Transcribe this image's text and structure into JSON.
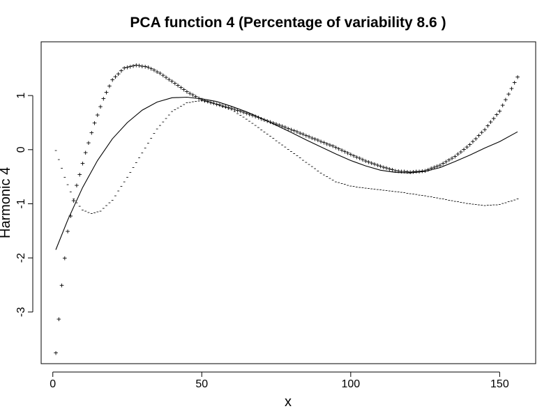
{
  "chart_data": {
    "type": "line",
    "title": "PCA function 4 (Percentage of variability 8.6 )",
    "xlabel": "x",
    "ylabel": "Harmonic 4",
    "xlim": [
      1,
      156
    ],
    "ylim": [
      -3.8,
      1.8
    ],
    "x_ticks": [
      0,
      50,
      100,
      150
    ],
    "y_ticks": [
      -3,
      -2,
      -1,
      0,
      1
    ],
    "x_tick_labels": [
      "0",
      "50",
      "100",
      "150"
    ],
    "y_tick_labels": [
      "-3",
      "-2",
      "-1",
      "0",
      "1"
    ],
    "grid": false,
    "legend": "none",
    "series": [
      {
        "style": "solid-line",
        "points": [
          [
            1,
            -1.85
          ],
          [
            5,
            -1.3
          ],
          [
            10,
            -0.7
          ],
          [
            15,
            -0.2
          ],
          [
            20,
            0.2
          ],
          [
            25,
            0.5
          ],
          [
            30,
            0.73
          ],
          [
            35,
            0.88
          ],
          [
            40,
            0.96
          ],
          [
            45,
            0.97
          ],
          [
            50,
            0.94
          ],
          [
            55,
            0.89
          ],
          [
            60,
            0.8
          ],
          [
            65,
            0.7
          ],
          [
            70,
            0.58
          ],
          [
            75,
            0.45
          ],
          [
            80,
            0.32
          ],
          [
            85,
            0.18
          ],
          [
            90,
            0.05
          ],
          [
            95,
            -0.08
          ],
          [
            100,
            -0.2
          ],
          [
            105,
            -0.3
          ],
          [
            110,
            -0.38
          ],
          [
            115,
            -0.42
          ],
          [
            120,
            -0.43
          ],
          [
            125,
            -0.4
          ],
          [
            130,
            -0.33
          ],
          [
            135,
            -0.22
          ],
          [
            140,
            -0.1
          ],
          [
            145,
            0.03
          ],
          [
            150,
            0.15
          ],
          [
            156,
            0.33
          ]
        ]
      },
      {
        "style": "plus-markers",
        "points": [
          [
            1,
            -3.75
          ],
          [
            3,
            -2.5
          ],
          [
            5,
            -1.5
          ],
          [
            8,
            -0.65
          ],
          [
            11,
            -0.05
          ],
          [
            14,
            0.5
          ],
          [
            17,
            0.95
          ],
          [
            20,
            1.3
          ],
          [
            24,
            1.52
          ],
          [
            28,
            1.57
          ],
          [
            32,
            1.53
          ],
          [
            36,
            1.42
          ],
          [
            40,
            1.27
          ],
          [
            45,
            1.08
          ],
          [
            50,
            0.93
          ],
          [
            55,
            0.85
          ],
          [
            60,
            0.77
          ],
          [
            65,
            0.68
          ],
          [
            70,
            0.58
          ],
          [
            75,
            0.48
          ],
          [
            80,
            0.38
          ],
          [
            85,
            0.27
          ],
          [
            90,
            0.16
          ],
          [
            95,
            0.05
          ],
          [
            100,
            -0.08
          ],
          [
            105,
            -0.2
          ],
          [
            110,
            -0.3
          ],
          [
            115,
            -0.38
          ],
          [
            120,
            -0.41
          ],
          [
            125,
            -0.38
          ],
          [
            130,
            -0.28
          ],
          [
            135,
            -0.12
          ],
          [
            140,
            0.1
          ],
          [
            145,
            0.38
          ],
          [
            150,
            0.72
          ],
          [
            156,
            1.35
          ]
        ]
      },
      {
        "style": "minus-markers",
        "points": [
          [
            1,
            0.0
          ],
          [
            4,
            -0.5
          ],
          [
            7,
            -0.9
          ],
          [
            10,
            -1.1
          ],
          [
            13,
            -1.17
          ],
          [
            16,
            -1.12
          ],
          [
            20,
            -0.92
          ],
          [
            25,
            -0.5
          ],
          [
            30,
            -0.05
          ],
          [
            35,
            0.4
          ],
          [
            40,
            0.72
          ],
          [
            45,
            0.88
          ],
          [
            50,
            0.92
          ],
          [
            55,
            0.85
          ],
          [
            60,
            0.75
          ],
          [
            65,
            0.58
          ],
          [
            70,
            0.38
          ],
          [
            75,
            0.18
          ],
          [
            80,
            -0.02
          ],
          [
            85,
            -0.22
          ],
          [
            90,
            -0.42
          ],
          [
            95,
            -0.58
          ],
          [
            100,
            -0.66
          ],
          [
            105,
            -0.7
          ],
          [
            110,
            -0.73
          ],
          [
            115,
            -0.76
          ],
          [
            120,
            -0.8
          ],
          [
            125,
            -0.84
          ],
          [
            130,
            -0.89
          ],
          [
            135,
            -0.94
          ],
          [
            140,
            -0.99
          ],
          [
            145,
            -1.02
          ],
          [
            150,
            -1.0
          ],
          [
            156,
            -0.9
          ]
        ]
      }
    ]
  }
}
